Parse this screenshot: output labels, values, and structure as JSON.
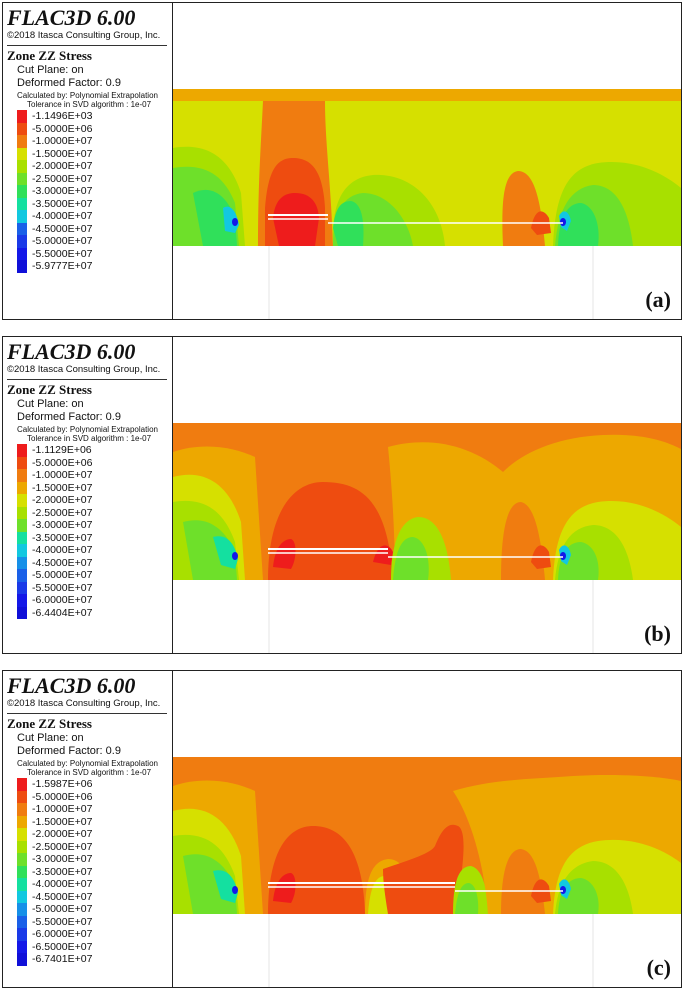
{
  "panels": [
    {
      "app_title": "FLAC3D 6.00",
      "copyright": "©2018 Itasca Consulting Group, Inc.",
      "quantity": "Zone ZZ Stress",
      "cut_plane": "Cut Plane: on",
      "deformed": "Deformed Factor: 0.9",
      "calc": "Calculated by: Polynomial Extrapolation",
      "tolerance": "Tolerance in SVD algorithm : 1e-07",
      "label": "(a)",
      "scale_values": [
        "-1.1496E+03",
        "-5.0000E+06",
        "-1.0000E+07",
        "-1.5000E+07",
        "-2.0000E+07",
        "-2.5000E+07",
        "-3.0000E+07",
        "-3.5000E+07",
        "-4.0000E+07",
        "-4.5000E+07",
        "-5.0000E+07",
        "-5.5000E+07",
        "-5.9777E+07"
      ]
    },
    {
      "app_title": "FLAC3D 6.00",
      "copyright": "©2018 Itasca Consulting Group, Inc.",
      "quantity": "Zone ZZ Stress",
      "cut_plane": "Cut Plane: on",
      "deformed": "Deformed Factor: 0.9",
      "calc": "Calculated by: Polynomial Extrapolation",
      "tolerance": "Tolerance in SVD algorithm : 1e-07",
      "label": "(b)",
      "scale_values": [
        "-1.1129E+06",
        "-5.0000E+06",
        "-1.0000E+07",
        "-1.5000E+07",
        "-2.0000E+07",
        "-2.5000E+07",
        "-3.0000E+07",
        "-3.5000E+07",
        "-4.0000E+07",
        "-4.5000E+07",
        "-5.0000E+07",
        "-5.5000E+07",
        "-6.0000E+07",
        "-6.4404E+07"
      ]
    },
    {
      "app_title": "FLAC3D 6.00",
      "copyright": "©2018 Itasca Consulting Group, Inc.",
      "quantity": "Zone ZZ Stress",
      "cut_plane": "Cut Plane: on",
      "deformed": "Deformed Factor: 0.9",
      "calc": "Calculated by: Polynomial Extrapolation",
      "tolerance": "Tolerance in SVD algorithm : 1e-07",
      "label": "(c)",
      "scale_values": [
        "-1.5987E+06",
        "-5.0000E+06",
        "-1.0000E+07",
        "-1.5000E+07",
        "-2.0000E+07",
        "-2.5000E+07",
        "-3.0000E+07",
        "-3.5000E+07",
        "-4.0000E+07",
        "-4.5000E+07",
        "-5.0000E+07",
        "-5.5000E+07",
        "-6.0000E+07",
        "-6.5000E+07",
        "-6.7401E+07"
      ]
    }
  ],
  "scale_colors": [
    "#ee1c1c",
    "#ee4c10",
    "#f07c10",
    "#eda800",
    "#d6e000",
    "#a8e000",
    "#6ee02a",
    "#30e05a",
    "#14e0a0",
    "#12c8e0",
    "#1690e8",
    "#1a60e8",
    "#1a3ae8",
    "#1418e8",
    "#1010d8"
  ],
  "contour_colors": {
    "red": "#ee1c1c",
    "red_orange": "#ee4c10",
    "orange": "#f07c10",
    "orange_yellow": "#eda800",
    "yellow": "#d6e000",
    "yellow_green": "#a8e000",
    "green": "#6ee02a",
    "green2": "#30e05a",
    "aqua": "#14e0a0",
    "cyan": "#12c8e0",
    "blue": "#1690e8",
    "deep_blue": "#1418e8"
  }
}
